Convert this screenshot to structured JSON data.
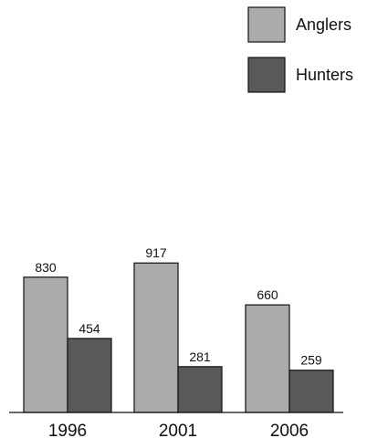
{
  "chart_data": {
    "type": "bar",
    "title": "",
    "xlabel": "",
    "ylabel": "",
    "categories": [
      "1996",
      "2001",
      "2006"
    ],
    "series": [
      {
        "name": "Anglers",
        "values": [
          830,
          917,
          660
        ],
        "color": "#aaabad"
      },
      {
        "name": "Hunters",
        "values": [
          454,
          281,
          259
        ],
        "color": "#58595b"
      }
    ],
    "ylim": [
      0,
      1000
    ],
    "grid": false,
    "legend_position": "top-right",
    "data_labels": true
  }
}
